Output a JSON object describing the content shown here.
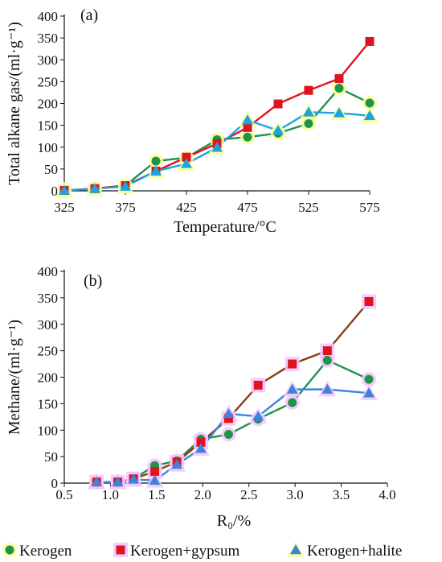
{
  "colors": {
    "kerogen": "#1e9448",
    "gypsum": "#e0141e",
    "gypsum_b_line": "#8b3a1a",
    "halite_a": "#1aa5e0",
    "halite_b": "#3e84dd",
    "glow_a": "#f7ff9a",
    "glow_b": "#f4c8ff",
    "axis": "#111111"
  },
  "legend": [
    {
      "label": "Kerogen",
      "marker": "circle",
      "color_key": "kerogen"
    },
    {
      "label": "Kerogen+gypsum",
      "marker": "square",
      "color_key": "gypsum"
    },
    {
      "label": "Kerogen+halite",
      "marker": "triangle",
      "color_key": "halite_b"
    }
  ],
  "chart_data": [
    {
      "type": "line",
      "panel_label": "(a)",
      "xlabel": "Temperature/°C",
      "ylabel": "Total alkane gas/(ml·g⁻¹)",
      "xlim": [
        325,
        575
      ],
      "ylim": [
        0,
        400
      ],
      "xticks": [
        "325",
        "375",
        "425",
        "475",
        "525",
        "575"
      ],
      "yticks": [
        "0",
        "50",
        "100",
        "150",
        "200",
        "250",
        "300",
        "350",
        "400"
      ],
      "series": [
        {
          "name": "Kerogen",
          "marker": "circle",
          "color_key": "kerogen",
          "glow": true,
          "points": [
            [
              325,
              1
            ],
            [
              350,
              5
            ],
            [
              375,
              12
            ],
            [
              400,
              68
            ],
            [
              425,
              76
            ],
            [
              450,
              117
            ],
            [
              475,
              123
            ],
            [
              500,
              132
            ],
            [
              525,
              154
            ],
            [
              550,
              235
            ],
            [
              575,
              201
            ]
          ]
        },
        {
          "name": "Kerogen+gypsum",
          "marker": "square",
          "color_key": "gypsum",
          "glow": false,
          "points": [
            [
              325,
              1
            ],
            [
              350,
              5
            ],
            [
              375,
              12
            ],
            [
              400,
              45
            ],
            [
              425,
              77
            ],
            [
              450,
              108
            ],
            [
              475,
              145
            ],
            [
              500,
              199
            ],
            [
              525,
              230
            ],
            [
              550,
              257
            ],
            [
              575,
              342
            ]
          ]
        },
        {
          "name": "Kerogen+halite",
          "marker": "triangle",
          "color_key": "halite_a",
          "glow": true,
          "points": [
            [
              325,
              1
            ],
            [
              350,
              5
            ],
            [
              375,
              10
            ],
            [
              400,
              45
            ],
            [
              425,
              62
            ],
            [
              450,
              99
            ],
            [
              475,
              162
            ],
            [
              500,
              138
            ],
            [
              525,
              180
            ],
            [
              550,
              178
            ],
            [
              575,
              172
            ]
          ]
        }
      ]
    },
    {
      "type": "line",
      "panel_label": "(b)",
      "xlabel": "R₀/%",
      "ylabel": "Methane/(ml·g⁻¹)",
      "xlim": [
        0.5,
        4.0
      ],
      "ylim": [
        0,
        400
      ],
      "xticks": [
        "0.5",
        "1.0",
        "1.5",
        "2.0",
        "2.5",
        "3.0",
        "3.5",
        "4.0"
      ],
      "yticks": [
        "0",
        "50",
        "100",
        "150",
        "200",
        "250",
        "300",
        "350",
        "400"
      ],
      "series": [
        {
          "name": "Kerogen",
          "marker": "circle",
          "color_key": "kerogen",
          "glow": true,
          "points": [
            [
              0.85,
              2
            ],
            [
              1.08,
              2
            ],
            [
              1.25,
              8
            ],
            [
              1.48,
              33
            ],
            [
              1.72,
              42
            ],
            [
              1.98,
              83
            ],
            [
              2.28,
              92
            ],
            [
              2.6,
              121
            ],
            [
              2.97,
              152
            ],
            [
              3.35,
              232
            ],
            [
              3.8,
              196
            ]
          ]
        },
        {
          "name": "Kerogen+gypsum",
          "marker": "square",
          "color_key": "gypsum",
          "line_key": "gypsum_b_line",
          "glow": true,
          "points": [
            [
              0.85,
              2
            ],
            [
              1.08,
              2
            ],
            [
              1.25,
              8
            ],
            [
              1.48,
              22
            ],
            [
              1.72,
              40
            ],
            [
              1.98,
              77
            ],
            [
              2.28,
              122
            ],
            [
              2.6,
              185
            ],
            [
              2.97,
              225
            ],
            [
              3.35,
              250
            ],
            [
              3.8,
              343
            ]
          ]
        },
        {
          "name": "Kerogen+halite",
          "marker": "triangle",
          "color_key": "halite_b",
          "glow": true,
          "points": [
            [
              0.85,
              2
            ],
            [
              1.08,
              2
            ],
            [
              1.25,
              7
            ],
            [
              1.48,
              5
            ],
            [
              1.72,
              35
            ],
            [
              1.98,
              65
            ],
            [
              2.28,
              131
            ],
            [
              2.6,
              126
            ],
            [
              2.97,
              177
            ],
            [
              3.35,
              177
            ],
            [
              3.8,
              170
            ]
          ]
        }
      ]
    }
  ]
}
